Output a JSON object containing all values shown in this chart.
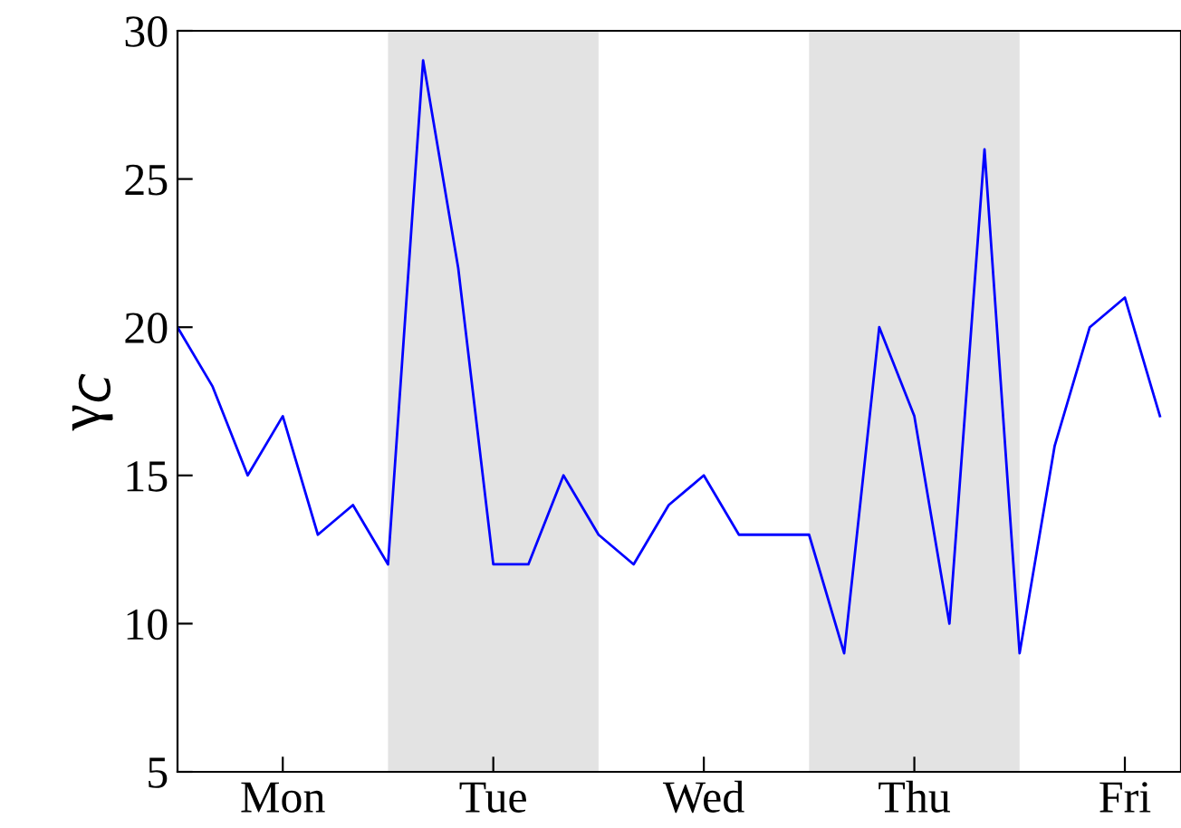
{
  "chart_data": {
    "type": "line",
    "ylabel": "γ$_{C}$",
    "categories": [
      null,
      null,
      null,
      "Mon",
      null,
      null,
      null,
      null,
      null,
      "Tue",
      null,
      null,
      null,
      null,
      null,
      "Wed",
      null,
      null,
      null,
      null,
      null,
      "Thu",
      null,
      null,
      null,
      null,
      null,
      "Fri",
      null
    ],
    "series": [
      {
        "color": "#0000ff",
        "values": [
          20,
          18,
          15,
          17,
          13,
          14,
          12,
          29,
          22,
          12,
          12,
          15,
          13,
          12,
          14,
          15,
          13,
          13,
          13,
          9,
          20,
          17,
          10,
          26,
          9,
          16,
          20,
          21,
          17
        ]
      }
    ],
    "ylim": [
      5,
      30
    ],
    "yticks": [
      5,
      10,
      15,
      20,
      25,
      30
    ],
    "grid": false,
    "line_style": "solid",
    "marker": "none"
  }
}
